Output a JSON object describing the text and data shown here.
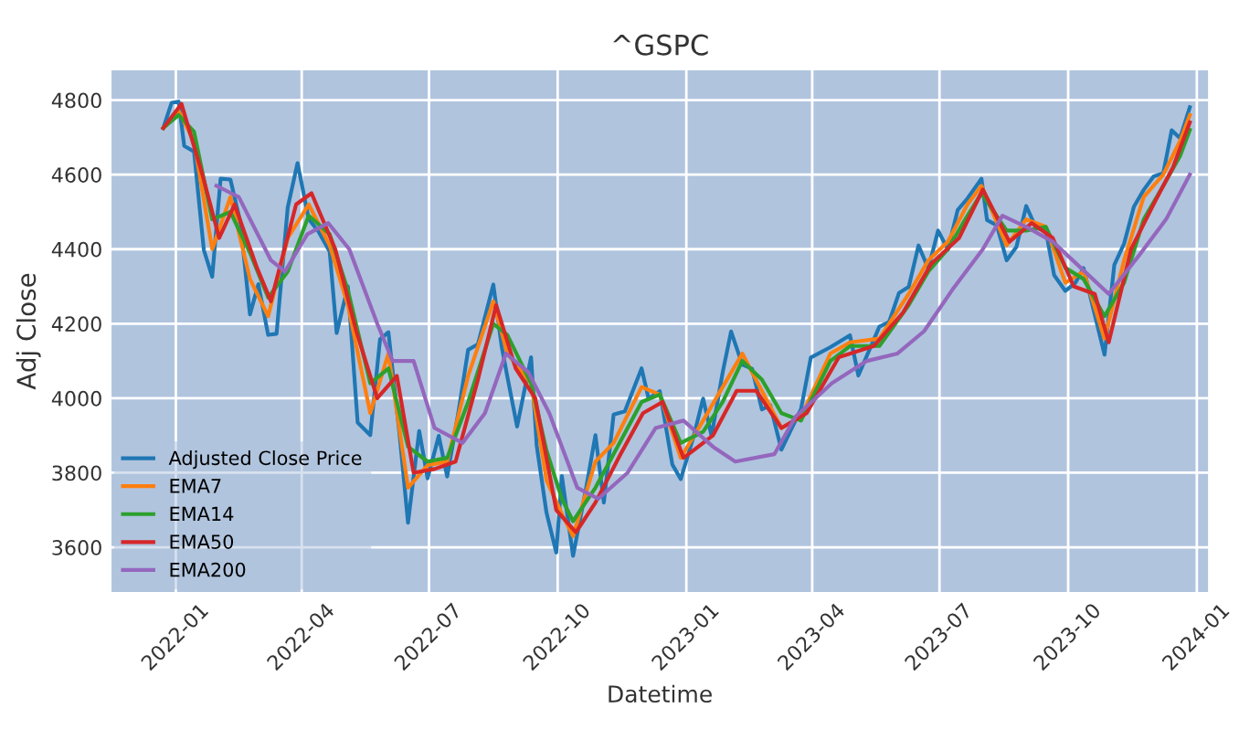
{
  "chart_data": {
    "type": "line",
    "title": "^GSPC",
    "xlabel": "Datetime",
    "ylabel": "Adj Close",
    "xlim": [
      "2021-11-16",
      "2024-01-09"
    ],
    "ylim": [
      3480,
      4880
    ],
    "xticks": [
      {
        "value": "2022-01-01",
        "label": "2022-01"
      },
      {
        "value": "2022-04-01",
        "label": "2022-04"
      },
      {
        "value": "2022-07-01",
        "label": "2022-07"
      },
      {
        "value": "2022-10-01",
        "label": "2022-10"
      },
      {
        "value": "2023-01-01",
        "label": "2023-01"
      },
      {
        "value": "2023-04-01",
        "label": "2023-04"
      },
      {
        "value": "2023-07-01",
        "label": "2023-07"
      },
      {
        "value": "2023-10-01",
        "label": "2023-10"
      },
      {
        "value": "2024-01-01",
        "label": "2024-01"
      }
    ],
    "yticks": [
      3600,
      3800,
      4000,
      4200,
      4400,
      4600,
      4800
    ],
    "grid": true,
    "legend": "bottom left",
    "line_style": "solid",
    "marker": "none",
    "series": [
      {
        "name": "Adjusted Close Price",
        "color": "#1f77b4",
        "x": [
          "2021-12-23",
          "2021-12-29",
          "2022-01-03",
          "2022-01-07",
          "2022-01-14",
          "2022-01-21",
          "2022-01-27",
          "2022-02-02",
          "2022-02-09",
          "2022-02-16",
          "2022-02-23",
          "2022-03-01",
          "2022-03-08",
          "2022-03-14",
          "2022-03-22",
          "2022-03-29",
          "2022-04-06",
          "2022-04-13",
          "2022-04-21",
          "2022-04-26",
          "2022-05-04",
          "2022-05-11",
          "2022-05-20",
          "2022-05-27",
          "2022-06-02",
          "2022-06-10",
          "2022-06-16",
          "2022-06-24",
          "2022-06-30",
          "2022-07-08",
          "2022-07-14",
          "2022-07-22",
          "2022-07-29",
          "2022-08-05",
          "2022-08-16",
          "2022-08-22",
          "2022-08-26",
          "2022-09-02",
          "2022-09-12",
          "2022-09-16",
          "2022-09-23",
          "2022-09-30",
          "2022-10-04",
          "2022-10-12",
          "2022-10-21",
          "2022-10-28",
          "2022-11-03",
          "2022-11-10",
          "2022-11-18",
          "2022-11-30",
          "2022-12-05",
          "2022-12-13",
          "2022-12-22",
          "2022-12-28",
          "2023-01-06",
          "2023-01-13",
          "2023-01-19",
          "2023-01-27",
          "2023-02-02",
          "2023-02-10",
          "2023-02-17",
          "2023-02-24",
          "2023-03-02",
          "2023-03-10",
          "2023-03-17",
          "2023-03-24",
          "2023-03-31",
          "2023-04-14",
          "2023-04-28",
          "2023-05-04",
          "2023-05-19",
          "2023-05-26",
          "2023-06-02",
          "2023-06-09",
          "2023-06-16",
          "2023-06-23",
          "2023-06-30",
          "2023-07-07",
          "2023-07-14",
          "2023-07-21",
          "2023-07-31",
          "2023-08-04",
          "2023-08-11",
          "2023-08-18",
          "2023-08-25",
          "2023-09-01",
          "2023-09-08",
          "2023-09-15",
          "2023-09-21",
          "2023-09-29",
          "2023-10-06",
          "2023-10-12",
          "2023-10-20",
          "2023-10-27",
          "2023-11-03",
          "2023-11-10",
          "2023-11-17",
          "2023-11-24",
          "2023-12-01",
          "2023-12-08",
          "2023-12-14",
          "2023-12-20",
          "2023-12-27"
        ],
        "values": [
          4725,
          4793,
          4796,
          4677,
          4662,
          4398,
          4326,
          4589,
          4587,
          4475,
          4225,
          4306,
          4170,
          4173,
          4512,
          4631,
          4481,
          4447,
          4393,
          4175,
          4300,
          3935,
          3901,
          4158,
          4177,
          3901,
          3666,
          3912,
          3785,
          3899,
          3790,
          3962,
          4130,
          4145,
          4305,
          4138,
          4058,
          3924,
          4110,
          3873,
          3693,
          3586,
          3791,
          3577,
          3752,
          3901,
          3720,
          3956,
          3965,
          4080,
          3999,
          4019,
          3822,
          3783,
          3895,
          3999,
          3899,
          4070,
          4179,
          4090,
          4079,
          3970,
          3981,
          3862,
          3917,
          3971,
          4109,
          4137,
          4169,
          4061,
          4192,
          4205,
          4282,
          4299,
          4410,
          4348,
          4450,
          4399,
          4505,
          4536,
          4589,
          4478,
          4464,
          4370,
          4406,
          4516,
          4457,
          4450,
          4330,
          4288,
          4309,
          4349,
          4224,
          4117,
          4358,
          4415,
          4514,
          4559,
          4595,
          4604,
          4719,
          4698,
          4781
        ]
      },
      {
        "name": "EMA7",
        "color": "#ff7f0e",
        "x": [
          "2021-12-23",
          "2022-01-03",
          "2022-01-14",
          "2022-01-27",
          "2022-02-09",
          "2022-02-23",
          "2022-03-08",
          "2022-03-22",
          "2022-04-06",
          "2022-04-21",
          "2022-05-04",
          "2022-05-20",
          "2022-06-02",
          "2022-06-16",
          "2022-06-30",
          "2022-07-14",
          "2022-07-29",
          "2022-08-16",
          "2022-08-26",
          "2022-09-12",
          "2022-09-23",
          "2022-10-04",
          "2022-10-12",
          "2022-10-28",
          "2022-11-10",
          "2022-11-30",
          "2022-12-13",
          "2022-12-28",
          "2023-01-13",
          "2023-01-27",
          "2023-02-10",
          "2023-02-24",
          "2023-03-10",
          "2023-03-24",
          "2023-04-14",
          "2023-04-28",
          "2023-05-19",
          "2023-06-09",
          "2023-06-23",
          "2023-07-07",
          "2023-07-21",
          "2023-07-31",
          "2023-08-18",
          "2023-09-01",
          "2023-09-15",
          "2023-09-29",
          "2023-10-12",
          "2023-10-27",
          "2023-11-10",
          "2023-11-24",
          "2023-12-08",
          "2023-12-20",
          "2023-12-27"
        ],
        "values": [
          4725,
          4770,
          4690,
          4400,
          4540,
          4320,
          4220,
          4430,
          4520,
          4410,
          4250,
          3960,
          4120,
          3760,
          3820,
          3830,
          4060,
          4260,
          4120,
          4040,
          3780,
          3690,
          3630,
          3830,
          3880,
          4030,
          4010,
          3840,
          3940,
          4030,
          4120,
          4020,
          3920,
          3950,
          4120,
          4150,
          4160,
          4280,
          4370,
          4420,
          4520,
          4570,
          4410,
          4480,
          4460,
          4310,
          4340,
          4160,
          4370,
          4540,
          4600,
          4690,
          4760
        ]
      },
      {
        "name": "EMA14",
        "color": "#2ca02c",
        "x": [
          "2021-12-23",
          "2022-01-03",
          "2022-01-14",
          "2022-01-27",
          "2022-02-09",
          "2022-02-23",
          "2022-03-08",
          "2022-03-22",
          "2022-04-06",
          "2022-04-21",
          "2022-05-04",
          "2022-05-20",
          "2022-06-02",
          "2022-06-16",
          "2022-06-30",
          "2022-07-14",
          "2022-07-29",
          "2022-08-16",
          "2022-08-26",
          "2022-09-12",
          "2022-09-23",
          "2022-10-04",
          "2022-10-12",
          "2022-10-28",
          "2022-11-10",
          "2022-11-30",
          "2022-12-13",
          "2022-12-28",
          "2023-01-13",
          "2023-01-27",
          "2023-02-10",
          "2023-02-24",
          "2023-03-10",
          "2023-03-24",
          "2023-04-14",
          "2023-04-28",
          "2023-05-19",
          "2023-06-09",
          "2023-06-23",
          "2023-07-07",
          "2023-07-21",
          "2023-07-31",
          "2023-08-18",
          "2023-09-01",
          "2023-09-15",
          "2023-09-29",
          "2023-10-12",
          "2023-10-27",
          "2023-11-10",
          "2023-11-24",
          "2023-12-08",
          "2023-12-20",
          "2023-12-27"
        ],
        "values": [
          4725,
          4760,
          4715,
          4480,
          4500,
          4390,
          4270,
          4340,
          4490,
          4440,
          4290,
          4040,
          4080,
          3870,
          3830,
          3840,
          3990,
          4200,
          4170,
          4040,
          3860,
          3730,
          3670,
          3760,
          3850,
          3990,
          4010,
          3880,
          3910,
          3990,
          4100,
          4050,
          3960,
          3940,
          4100,
          4140,
          4140,
          4250,
          4340,
          4400,
          4490,
          4550,
          4450,
          4450,
          4460,
          4350,
          4320,
          4220,
          4310,
          4480,
          4570,
          4650,
          4720
        ]
      },
      {
        "name": "EMA50",
        "color": "#d62728",
        "x": [
          "2021-12-23",
          "2022-01-05",
          "2022-01-20",
          "2022-02-01",
          "2022-02-12",
          "2022-02-28",
          "2022-03-10",
          "2022-03-28",
          "2022-04-08",
          "2022-04-25",
          "2022-05-10",
          "2022-05-25",
          "2022-06-08",
          "2022-06-20",
          "2022-07-05",
          "2022-07-20",
          "2022-08-05",
          "2022-08-18",
          "2022-09-01",
          "2022-09-15",
          "2022-09-30",
          "2022-10-14",
          "2022-10-28",
          "2022-11-15",
          "2022-12-01",
          "2022-12-15",
          "2022-12-30",
          "2023-01-20",
          "2023-02-06",
          "2023-02-20",
          "2023-03-10",
          "2023-03-28",
          "2023-04-20",
          "2023-05-15",
          "2023-06-05",
          "2023-06-25",
          "2023-07-15",
          "2023-08-01",
          "2023-08-20",
          "2023-09-05",
          "2023-09-20",
          "2023-10-05",
          "2023-10-20",
          "2023-10-30",
          "2023-11-15",
          "2023-12-01",
          "2023-12-15",
          "2023-12-27"
        ],
        "values": [
          4725,
          4790,
          4600,
          4430,
          4520,
          4350,
          4260,
          4520,
          4550,
          4400,
          4180,
          4000,
          4060,
          3800,
          3810,
          3830,
          4050,
          4250,
          4080,
          4000,
          3700,
          3640,
          3720,
          3850,
          3960,
          3990,
          3840,
          3900,
          4020,
          4020,
          3920,
          3960,
          4110,
          4140,
          4230,
          4360,
          4430,
          4560,
          4420,
          4470,
          4430,
          4300,
          4280,
          4150,
          4400,
          4520,
          4620,
          4740
        ]
      },
      {
        "name": "EMA200",
        "color": "#9467bd",
        "x": [
          "2022-01-30",
          "2022-02-15",
          "2022-03-10",
          "2022-03-20",
          "2022-04-05",
          "2022-04-20",
          "2022-05-05",
          "2022-05-25",
          "2022-06-05",
          "2022-06-20",
          "2022-07-05",
          "2022-07-25",
          "2022-08-10",
          "2022-08-25",
          "2022-09-10",
          "2022-09-25",
          "2022-10-15",
          "2022-10-30",
          "2022-11-20",
          "2022-12-10",
          "2022-12-30",
          "2023-01-20",
          "2023-02-05",
          "2023-03-05",
          "2023-03-20",
          "2023-04-15",
          "2023-05-10",
          "2023-06-01",
          "2023-06-20",
          "2023-07-10",
          "2023-08-01",
          "2023-08-15",
          "2023-09-01",
          "2023-09-20",
          "2023-10-10",
          "2023-10-30",
          "2023-11-20",
          "2023-12-10",
          "2023-12-27"
        ],
        "values": [
          4570,
          4540,
          4370,
          4340,
          4440,
          4470,
          4400,
          4200,
          4100,
          4100,
          3920,
          3880,
          3960,
          4120,
          4070,
          3960,
          3760,
          3730,
          3800,
          3920,
          3940,
          3870,
          3830,
          3850,
          3950,
          4040,
          4100,
          4120,
          4180,
          4290,
          4400,
          4490,
          4460,
          4420,
          4350,
          4280,
          4380,
          4480,
          4600
        ]
      }
    ]
  }
}
